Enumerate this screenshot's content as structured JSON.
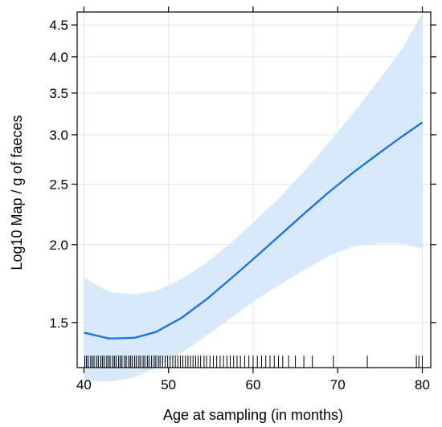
{
  "chart_data": {
    "type": "line",
    "title": "",
    "xlabel": "Age at sampling (in months)",
    "ylabel": "Log10 Map / g of faeces",
    "xlim": [
      39.2,
      81.0
    ],
    "ylim": [
      1.27,
      4.72
    ],
    "y_scale": "log",
    "grid": true,
    "x_ticks": [
      40,
      50,
      60,
      70,
      80
    ],
    "x_tick_labels": [
      "40",
      "50",
      "60",
      "70",
      "80"
    ],
    "y_ticks": [
      1.5,
      2.0,
      2.5,
      3.0,
      3.5,
      4.0,
      4.5
    ],
    "y_tick_labels": [
      "1.5",
      "2.0",
      "2.5",
      "3.0",
      "3.5",
      "4.0",
      "4.5"
    ],
    "line_color": "#1a75e8",
    "band_color": "#d7e9fb",
    "series": [
      {
        "x": [
          40,
          43,
          46,
          48.5,
          51.5,
          54.5,
          57.5,
          60,
          63,
          66,
          69,
          72,
          75,
          77.5,
          80
        ],
        "y": [
          1.445,
          1.414,
          1.418,
          1.448,
          1.525,
          1.635,
          1.77,
          1.895,
          2.06,
          2.24,
          2.43,
          2.62,
          2.81,
          2.975,
          3.14
        ],
        "lower": [
          1.21,
          1.205,
          1.225,
          1.27,
          1.34,
          1.43,
          1.53,
          1.62,
          1.72,
          1.82,
          1.92,
          1.99,
          2.01,
          2.01,
          1.97
        ],
        "upper": [
          1.77,
          1.68,
          1.665,
          1.685,
          1.76,
          1.87,
          2.02,
          2.17,
          2.37,
          2.62,
          2.92,
          3.27,
          3.69,
          4.1,
          4.7
        ]
      }
    ],
    "rug_x": [
      40.1,
      40.3,
      40.5,
      40.8,
      41.0,
      41.2,
      41.5,
      41.7,
      42.0,
      42.2,
      42.4,
      42.7,
      42.9,
      43.1,
      43.4,
      43.6,
      43.8,
      44.1,
      44.3,
      44.5,
      44.8,
      45.0,
      45.3,
      45.5,
      45.7,
      46.0,
      46.2,
      46.5,
      46.7,
      47.0,
      47.2,
      47.5,
      47.7,
      48.0,
      48.3,
      48.5,
      48.8,
      49.0,
      49.3,
      49.6,
      49.9,
      50.2,
      50.5,
      50.8,
      51.1,
      51.4,
      51.7,
      52.0,
      52.3,
      52.6,
      52.9,
      53.2,
      53.5,
      53.8,
      54.2,
      54.5,
      54.9,
      55.3,
      55.7,
      56.1,
      56.5,
      56.9,
      57.3,
      57.7,
      58.1,
      58.5,
      59.0,
      59.5,
      60.0,
      60.5,
      61.0,
      61.5,
      62.0,
      62.5,
      63.0,
      63.5,
      64.2,
      65.0,
      66.0,
      67.0,
      69.5,
      73.5,
      79.3,
      79.6,
      80.0
    ]
  }
}
